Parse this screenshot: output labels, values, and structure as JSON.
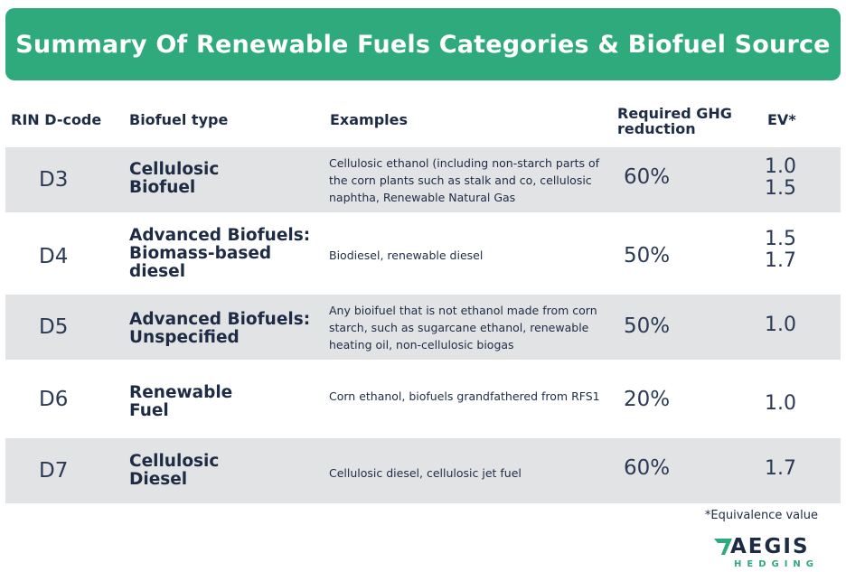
{
  "title": "Summary Of Renewable Fuels Categories & Biofuel Source",
  "headers": {
    "dcode": "RIN D-code",
    "type": "Biofuel type",
    "examples": "Examples",
    "ghg": "Required GHG\nreduction",
    "ev": "EV*"
  },
  "rows": [
    {
      "dcode": "D3",
      "type": "Cellulosic\nBiofuel",
      "examples": "Cellulosic ethanol (including non-starch parts of the corn plants such as stalk and co, cellulosic naphtha, Renewable Natural Gas",
      "ghg": "60%",
      "ev": "1.0\n1.5"
    },
    {
      "dcode": "D4",
      "type": "Advanced Biofuels:\nBiomass-based\ndiesel",
      "examples": "Biodiesel, renewable diesel",
      "ghg": "50%",
      "ev": "1.5\n1.7"
    },
    {
      "dcode": "D5",
      "type": "Advanced Biofuels:\nUnspecified",
      "examples": "Any bioifuel that is not ethanol made from corn starch, such as sugarcane ethanol, renewable heating oil, non-cellulosic biogas",
      "ghg": "50%",
      "ev": "1.0"
    },
    {
      "dcode": "D6",
      "type": "Renewable\nFuel",
      "examples": "Corn ethanol, biofuels grandfathered from RFS1",
      "ghg": "20%",
      "ev": "1.0"
    },
    {
      "dcode": "D7",
      "type": "Cellulosic\nDiesel",
      "examples": "Cellulosic diesel, cellulosic jet fuel",
      "ghg": "60%",
      "ev": "1.7"
    }
  ],
  "footnote": "*Equivalence value",
  "logo": {
    "name": "AEGIS",
    "subtitle": "HEDGING",
    "brand_green": "#2eaa7c",
    "brand_navy": "#1d2b45"
  },
  "colors": {
    "banner": "#2eaa7c",
    "row_shade": "#e2e3e5",
    "text": "#1d2b45"
  }
}
